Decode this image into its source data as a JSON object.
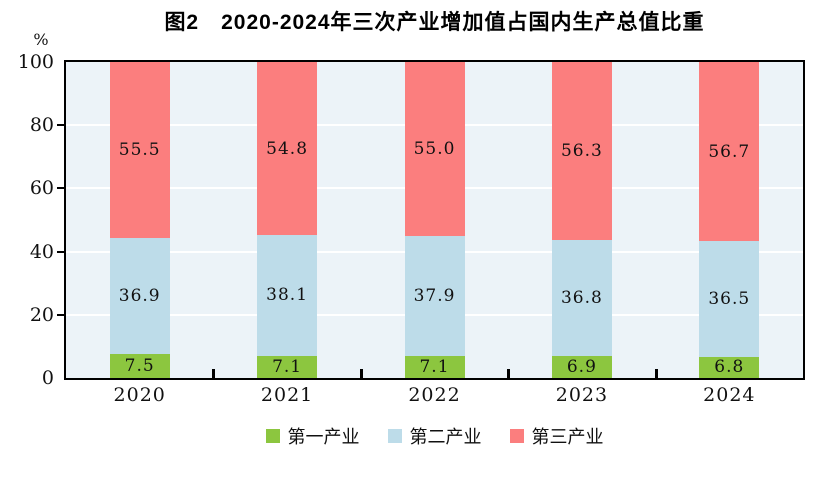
{
  "chart_data": {
    "type": "bar",
    "stacked": true,
    "title": "图2　2020-2024年三次产业增加值占国内生产总值比重",
    "ylabel": "%",
    "ylim": [
      0,
      100
    ],
    "y_ticks": [
      0,
      20,
      40,
      60,
      80,
      100
    ],
    "grid": true,
    "grid_color": "#ffffff",
    "plot_background": "#ECF3F8",
    "axis_color": "#000000",
    "legend_position": "bottom",
    "categories": [
      "2020",
      "2021",
      "2022",
      "2023",
      "2024"
    ],
    "series": [
      {
        "name": "第一产业",
        "color": "#8CC63F",
        "values": [
          7.5,
          7.1,
          7.1,
          6.9,
          6.8
        ],
        "labels": [
          "7.5",
          "7.1",
          "7.1",
          "6.9",
          "6.8"
        ]
      },
      {
        "name": "第二产业",
        "color": "#BDDCE9",
        "values": [
          36.9,
          38.1,
          37.9,
          36.8,
          36.5
        ],
        "labels": [
          "36.9",
          "38.1",
          "37.9",
          "36.8",
          "36.5"
        ]
      },
      {
        "name": "第三产业",
        "color": "#FB7E7E",
        "values": [
          55.5,
          54.8,
          55.0,
          56.3,
          56.7
        ],
        "labels": [
          "55.5",
          "54.8",
          "55.0",
          "56.3",
          "56.7"
        ]
      }
    ]
  }
}
